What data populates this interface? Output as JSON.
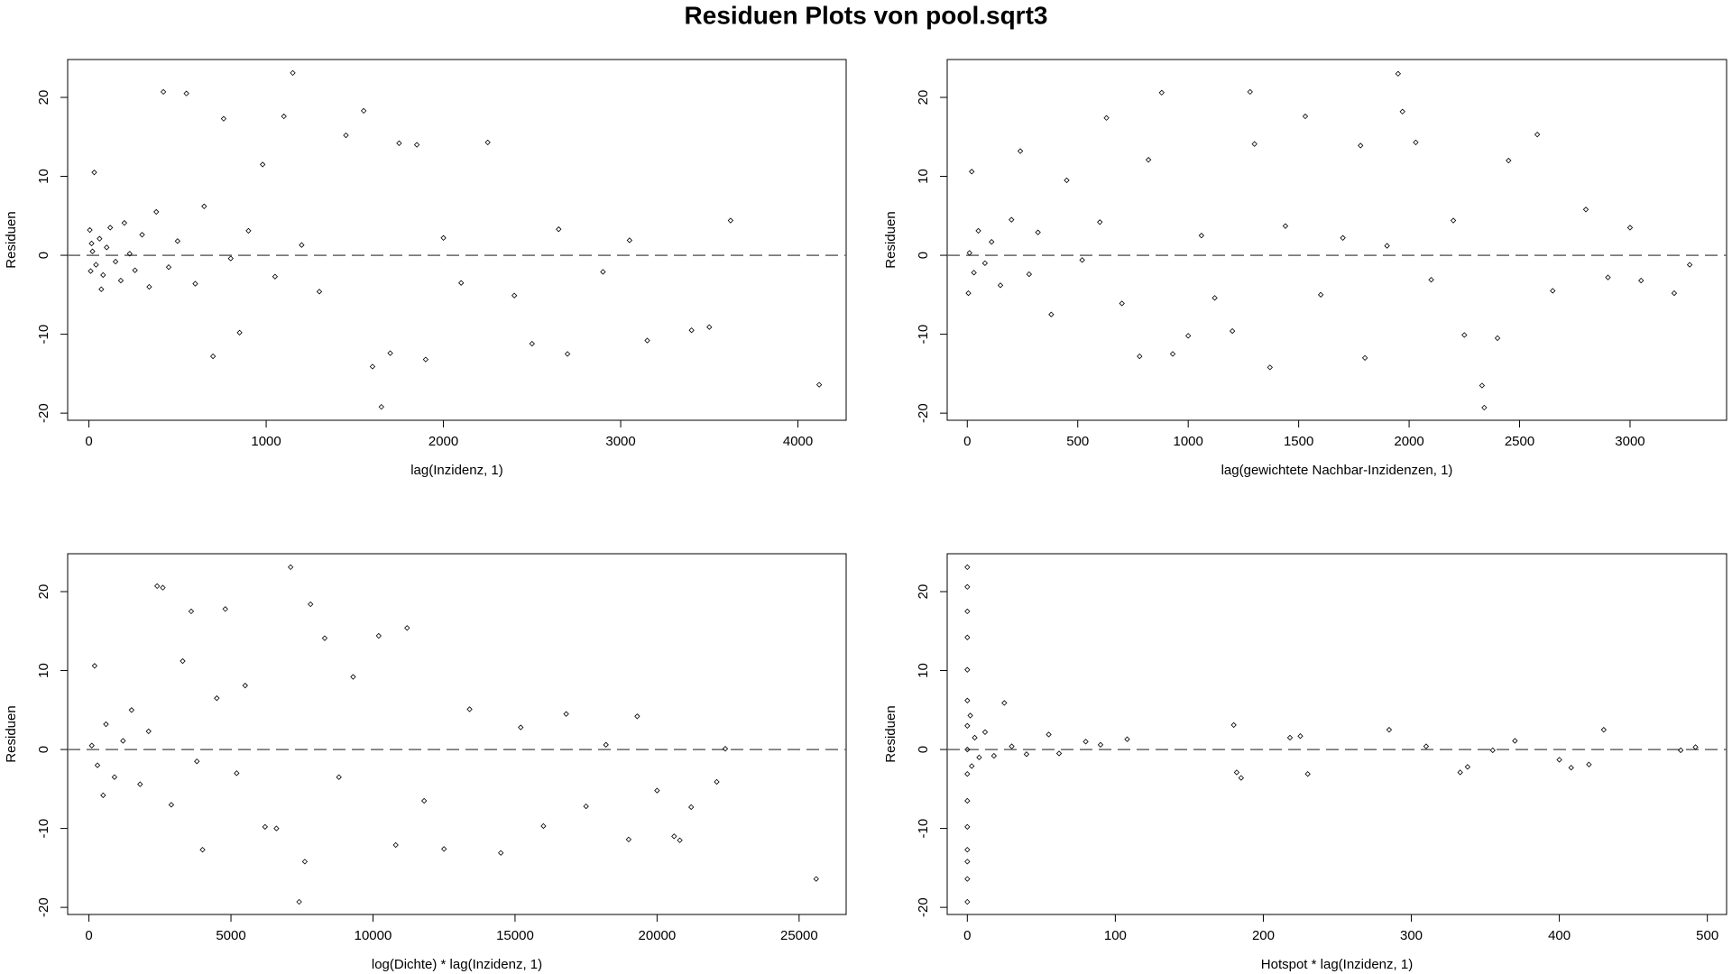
{
  "title": "Residuen Plots von pool.sqrt3",
  "chart_data": [
    {
      "type": "scatter",
      "xlabel": "lag(Inzidenz, 1)",
      "ylabel": "Residuen",
      "hline": 0,
      "xlim": [
        -120,
        4272
      ],
      "ylim": [
        -20.9,
        24.8
      ],
      "xticks": [
        0,
        1000,
        2000,
        3000,
        4000
      ],
      "yticks": [
        -20,
        -10,
        0,
        10,
        20
      ],
      "x": [
        20,
        40,
        60,
        80,
        100,
        120,
        150,
        180,
        200,
        230,
        260,
        300,
        340,
        380,
        420,
        450,
        500,
        550,
        600,
        650,
        700,
        760,
        800,
        850,
        900,
        980,
        1050,
        1100,
        1150,
        1200,
        1300,
        1450,
        1550,
        1600,
        1650,
        1700,
        1750,
        1850,
        1900,
        2000,
        2100,
        2250,
        2400,
        2500,
        2650,
        2700,
        2900,
        3050,
        3150,
        3400,
        3500,
        3620,
        4120,
        30,
        70,
        10,
        5,
        15
      ],
      "values": [
        0.5,
        -1.2,
        2.1,
        -2.5,
        1.0,
        3.5,
        -0.8,
        -3.2,
        4.1,
        0.2,
        -1.9,
        2.6,
        -4.0,
        5.5,
        20.7,
        -1.5,
        1.8,
        20.5,
        -3.6,
        6.2,
        -12.8,
        17.3,
        -0.4,
        -9.8,
        3.1,
        11.5,
        -2.7,
        17.6,
        23.1,
        1.3,
        -4.6,
        15.2,
        18.3,
        -14.1,
        -19.2,
        -12.4,
        14.2,
        14.0,
        -13.2,
        2.2,
        -3.5,
        14.3,
        -5.1,
        -11.2,
        3.3,
        -12.5,
        -2.1,
        1.9,
        -10.8,
        -9.5,
        -9.1,
        4.4,
        -16.4,
        10.5,
        -4.3,
        -2.0,
        3.2,
        1.5
      ]
    },
    {
      "type": "scatter",
      "xlabel": "lag(gewichtete Nachbar-Inzidenzen, 1)",
      "ylabel": "Residuen",
      "hline": 0,
      "xlim": [
        -91,
        3437
      ],
      "ylim": [
        -20.9,
        24.8
      ],
      "xticks": [
        0,
        500,
        1000,
        1500,
        2000,
        2500,
        3000
      ],
      "yticks": [
        -20,
        -10,
        0,
        10,
        20
      ],
      "x": [
        10,
        30,
        50,
        80,
        110,
        150,
        200,
        240,
        280,
        320,
        380,
        450,
        520,
        600,
        630,
        700,
        780,
        820,
        880,
        930,
        1000,
        1060,
        1120,
        1200,
        1280,
        1300,
        1370,
        1440,
        1530,
        1600,
        1700,
        1780,
        1800,
        1900,
        1950,
        1970,
        2030,
        2100,
        2200,
        2250,
        2330,
        2340,
        2400,
        2450,
        2580,
        2650,
        2800,
        2900,
        3000,
        3050,
        3200,
        3270,
        20,
        5
      ],
      "values": [
        0.3,
        -2.2,
        3.1,
        -1.0,
        1.7,
        -3.8,
        4.5,
        13.2,
        -2.4,
        2.9,
        -7.5,
        9.5,
        -0.6,
        4.2,
        17.4,
        -6.1,
        -12.8,
        12.1,
        20.6,
        -12.5,
        -10.2,
        2.5,
        -5.4,
        -9.6,
        20.7,
        14.1,
        -14.2,
        3.7,
        17.6,
        -5.0,
        2.2,
        13.9,
        -13.0,
        1.2,
        23.0,
        18.2,
        14.3,
        -3.1,
        4.4,
        -10.1,
        -16.5,
        -19.3,
        -10.5,
        12.0,
        15.3,
        -4.5,
        5.8,
        -2.8,
        3.5,
        -3.2,
        -4.8,
        -1.2,
        10.6,
        -4.8
      ]
    },
    {
      "type": "scatter",
      "xlabel": "log(Dichte) * lag(Inzidenz, 1)",
      "ylabel": "Residuen",
      "hline": 0,
      "xlim": [
        -749,
        26656
      ],
      "ylim": [
        -20.9,
        24.8
      ],
      "xticks": [
        0,
        5000,
        10000,
        15000,
        20000,
        25000
      ],
      "yticks": [
        -20,
        -10,
        0,
        10,
        20
      ],
      "x": [
        100,
        300,
        600,
        900,
        1200,
        1500,
        1800,
        2100,
        2400,
        2600,
        2900,
        3300,
        3600,
        3800,
        4000,
        4500,
        4800,
        5200,
        5500,
        6200,
        6600,
        7100,
        7400,
        7600,
        7800,
        8300,
        8800,
        9300,
        10200,
        10800,
        11200,
        11800,
        12500,
        13400,
        14500,
        15200,
        16000,
        16800,
        17500,
        18200,
        19000,
        19300,
        20000,
        20600,
        20800,
        21200,
        22100,
        22400,
        25600,
        200,
        500
      ],
      "values": [
        0.5,
        -2.0,
        3.2,
        -3.5,
        1.1,
        5.0,
        -4.4,
        2.3,
        20.7,
        20.5,
        -7.0,
        11.2,
        17.5,
        -1.5,
        -12.7,
        6.5,
        17.8,
        -3.0,
        8.1,
        -9.8,
        -10.0,
        23.1,
        -19.3,
        -14.2,
        18.4,
        14.1,
        -3.5,
        9.2,
        14.4,
        -12.1,
        15.4,
        -6.5,
        -12.6,
        5.1,
        -13.1,
        2.8,
        -9.7,
        4.5,
        -7.2,
        0.6,
        -11.4,
        4.2,
        -5.2,
        -11.0,
        -11.5,
        -7.3,
        -4.1,
        0.1,
        -16.4,
        10.6,
        -5.8
      ]
    },
    {
      "type": "scatter",
      "xlabel": "Hotspot * lag(Inzidenz, 1)",
      "ylabel": "Residuen",
      "hline": 0,
      "xlim": [
        -13.6,
        513
      ],
      "ylim": [
        -20.9,
        24.8
      ],
      "xticks": [
        0,
        100,
        200,
        300,
        400,
        500
      ],
      "yticks": [
        -20,
        -10,
        0,
        10,
        20
      ],
      "x": [
        0,
        0,
        0,
        0,
        0,
        0,
        0,
        0,
        0,
        0,
        0,
        0,
        0,
        0,
        0,
        2,
        3,
        5,
        8,
        12,
        18,
        25,
        30,
        40,
        55,
        62,
        80,
        90,
        108,
        180,
        182,
        185,
        218,
        225,
        230,
        285,
        310,
        333,
        338,
        355,
        370,
        400,
        408,
        420,
        430,
        482,
        492
      ],
      "values": [
        23.1,
        20.6,
        17.5,
        14.2,
        10.1,
        6.2,
        3.0,
        0.0,
        -3.1,
        -6.5,
        -9.8,
        -12.7,
        -14.2,
        -16.4,
        -19.3,
        4.3,
        -2.1,
        1.5,
        -1.0,
        2.2,
        -0.8,
        5.9,
        0.4,
        -0.6,
        1.9,
        -0.5,
        1.0,
        0.6,
        1.3,
        3.1,
        -2.9,
        -3.6,
        1.5,
        1.7,
        -3.1,
        2.5,
        0.4,
        -2.9,
        -2.2,
        -0.1,
        1.1,
        -1.3,
        -2.3,
        -1.9,
        2.5,
        -0.1,
        0.3
      ]
    }
  ]
}
